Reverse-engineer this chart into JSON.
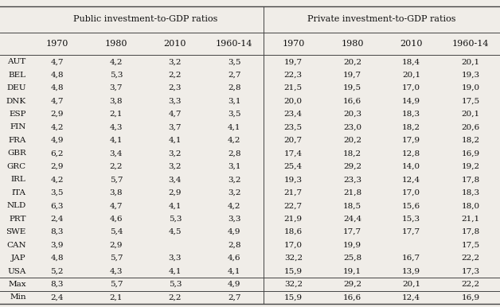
{
  "col_groups": [
    {
      "label": "Public investment-to-GDP ratios"
    },
    {
      "label": "Private investment-to-GDP ratios"
    }
  ],
  "col_headers": [
    "1970",
    "1980",
    "2010",
    "1960-14",
    "1970",
    "1980",
    "2010",
    "1960-14"
  ],
  "rows": [
    {
      "country": "AUT",
      "pub": [
        "4,7",
        "4,2",
        "3,2",
        "3,5"
      ],
      "prv": [
        "19,7",
        "20,2",
        "18,4",
        "20,1"
      ]
    },
    {
      "country": "BEL",
      "pub": [
        "4,8",
        "5,3",
        "2,2",
        "2,7"
      ],
      "prv": [
        "22,3",
        "19,7",
        "20,1",
        "19,3"
      ]
    },
    {
      "country": "DEU",
      "pub": [
        "4,8",
        "3,7",
        "2,3",
        "2,8"
      ],
      "prv": [
        "21,5",
        "19,5",
        "17,0",
        "19,0"
      ]
    },
    {
      "country": "DNK",
      "pub": [
        "4,7",
        "3,8",
        "3,3",
        "3,1"
      ],
      "prv": [
        "20,0",
        "16,6",
        "14,9",
        "17,5"
      ]
    },
    {
      "country": "ESP",
      "pub": [
        "2,9",
        "2,1",
        "4,7",
        "3,5"
      ],
      "prv": [
        "23,4",
        "20,3",
        "18,3",
        "20,1"
      ]
    },
    {
      "country": "FIN",
      "pub": [
        "4,2",
        "4,3",
        "3,7",
        "4,1"
      ],
      "prv": [
        "23,5",
        "23,0",
        "18,2",
        "20,6"
      ]
    },
    {
      "country": "FRA",
      "pub": [
        "4,9",
        "4,1",
        "4,1",
        "4,2"
      ],
      "prv": [
        "20,7",
        "20,2",
        "17,9",
        "18,2"
      ]
    },
    {
      "country": "GBR",
      "pub": [
        "6,2",
        "3,4",
        "3,2",
        "2,8"
      ],
      "prv": [
        "17,4",
        "18,2",
        "12,8",
        "16,9"
      ]
    },
    {
      "country": "GRC",
      "pub": [
        "2,9",
        "2,2",
        "3,2",
        "3,1"
      ],
      "prv": [
        "25,4",
        "29,2",
        "14,0",
        "19,2"
      ]
    },
    {
      "country": "IRL",
      "pub": [
        "4,2",
        "5,7",
        "3,4",
        "3,2"
      ],
      "prv": [
        "19,3",
        "23,3",
        "12,4",
        "17,8"
      ]
    },
    {
      "country": "ITA",
      "pub": [
        "3,5",
        "3,8",
        "2,9",
        "3,2"
      ],
      "prv": [
        "21,7",
        "21,8",
        "17,0",
        "18,3"
      ]
    },
    {
      "country": "NLD",
      "pub": [
        "6,3",
        "4,7",
        "4,1",
        "4,2"
      ],
      "prv": [
        "22,7",
        "18,5",
        "15,6",
        "18,0"
      ]
    },
    {
      "country": "PRT",
      "pub": [
        "2,4",
        "4,6",
        "5,3",
        "3,3"
      ],
      "prv": [
        "21,9",
        "24,4",
        "15,3",
        "21,1"
      ]
    },
    {
      "country": "SWE",
      "pub": [
        "8,3",
        "5,4",
        "4,5",
        "4,9"
      ],
      "prv": [
        "18,6",
        "17,7",
        "17,7",
        "17,8"
      ]
    },
    {
      "country": "CAN",
      "pub": [
        "3,9",
        "2,9",
        "",
        "2,8"
      ],
      "prv": [
        "17,0",
        "19,9",
        "",
        "17,5"
      ]
    },
    {
      "country": "JAP",
      "pub": [
        "4,8",
        "5,7",
        "3,3",
        "4,6"
      ],
      "prv": [
        "32,2",
        "25,8",
        "16,7",
        "22,2"
      ]
    },
    {
      "country": "USA",
      "pub": [
        "5,2",
        "4,3",
        "4,1",
        "4,1"
      ],
      "prv": [
        "15,9",
        "19,1",
        "13,9",
        "17,3"
      ]
    },
    {
      "country": "Max",
      "pub": [
        "8,3",
        "5,7",
        "5,3",
        "4,9"
      ],
      "prv": [
        "32,2",
        "29,2",
        "20,1",
        "22,2"
      ],
      "summary": true
    },
    {
      "country": "Min",
      "pub": [
        "2,4",
        "2,1",
        "2,2",
        "2,7"
      ],
      "prv": [
        "15,9",
        "16,6",
        "12,4",
        "16,9"
      ],
      "summary": true
    }
  ],
  "bg_color": "#f0ede8",
  "line_color": "#444444",
  "text_color": "#111111",
  "font_size": 7.5,
  "group_header_fontsize": 8.0,
  "col_header_fontsize": 8.0
}
